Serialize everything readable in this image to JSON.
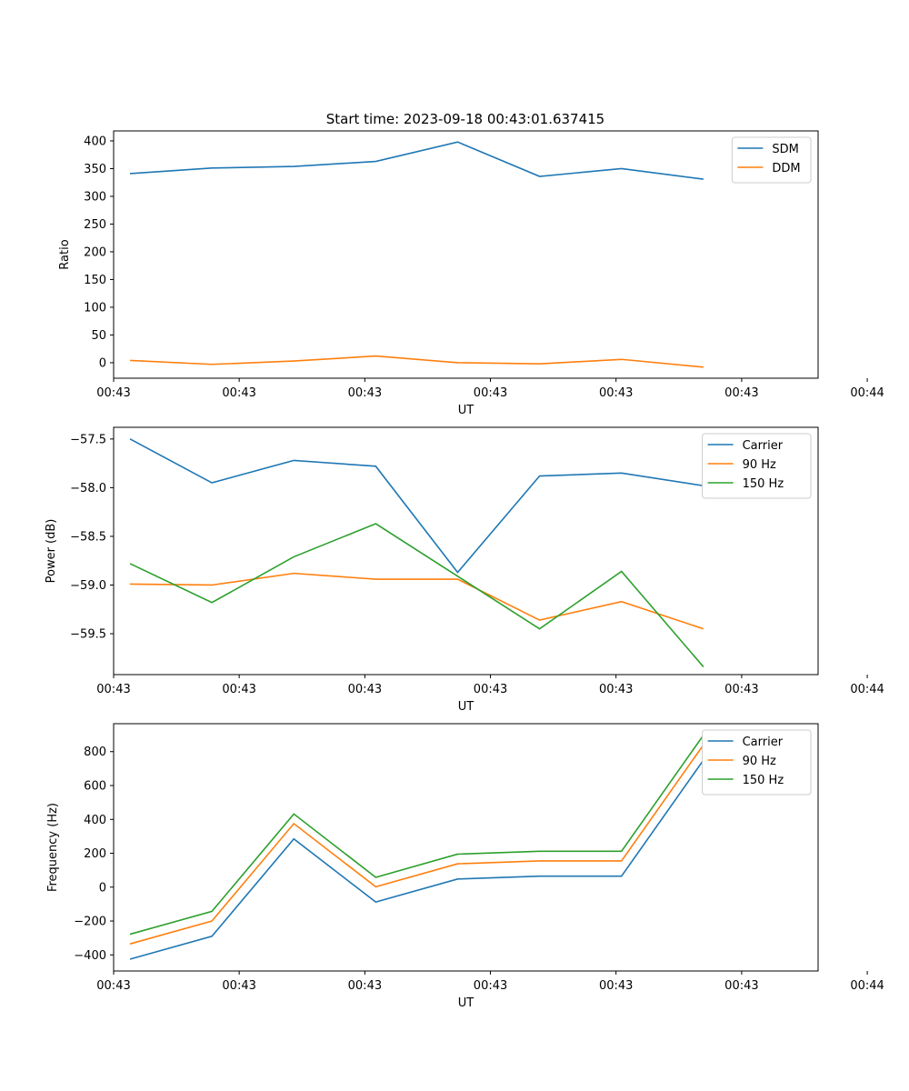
{
  "figure_title": "Start time: 2023-09-18 00:43:01.637415",
  "colors": {
    "blue": "#1f77b4",
    "orange": "#ff7f0e",
    "green": "#2ca02c"
  },
  "chart_data": [
    {
      "type": "line",
      "title": "Start time: 2023-09-18 00:43:01.637415",
      "xlabel": "UT",
      "ylabel": "Ratio",
      "x": [
        1,
        2,
        3,
        4,
        5,
        6,
        7,
        8
      ],
      "xlim": [
        0.8,
        9.4
      ],
      "x_ticks": [
        0.8,
        2.33,
        3.86,
        5.39,
        6.92,
        8.45,
        9.98,
        11.51,
        13.04,
        14.57,
        16.1,
        17.63,
        19.16,
        20.69,
        22.22,
        23.75,
        25.28,
        26.81,
        28.34,
        29.87,
        31.4,
        32.93,
        34.46,
        35.99,
        37.52,
        39.05,
        40.58,
        42.11,
        43.64,
        45.17,
        46.7,
        48.23,
        49.76
      ],
      "x_tick_values": [
        0.8,
        2.333,
        3.867,
        5.4,
        6.933,
        8.467,
        10.0
      ],
      "x_tick_labels": [
        "00:43",
        "00:43",
        "00:43",
        "00:43",
        "00:43",
        "00:43",
        "00:44"
      ],
      "ylim": [
        -28,
        418
      ],
      "y_ticks": [
        0,
        50,
        100,
        150,
        200,
        250,
        300,
        350,
        400
      ],
      "y_tick_labels": [
        "0",
        "50",
        "100",
        "150",
        "200",
        "250",
        "300",
        "350",
        "400"
      ],
      "legend_position": "top-right",
      "series": [
        {
          "name": "SDM",
          "color": "#1f77b4",
          "values": [
            341,
            351,
            354,
            363,
            398,
            336,
            350,
            331
          ]
        },
        {
          "name": "DDM",
          "color": "#ff7f0e",
          "values": [
            4,
            -3,
            3,
            12,
            0,
            -2,
            6,
            -8
          ]
        }
      ]
    },
    {
      "type": "line",
      "title": "",
      "xlabel": "UT",
      "ylabel": "Power (dB)",
      "x": [
        1,
        2,
        3,
        4,
        5,
        6,
        7,
        8
      ],
      "xlim": [
        0.8,
        9.4
      ],
      "x_tick_values": [
        0.8,
        2.333,
        3.867,
        5.4,
        6.933,
        8.467,
        10.0
      ],
      "x_tick_labels": [
        "00:43",
        "00:43",
        "00:43",
        "00:43",
        "00:43",
        "00:43",
        "00:44"
      ],
      "ylim": [
        -59.92,
        -57.38
      ],
      "y_ticks": [
        -59.5,
        -59.0,
        -58.5,
        -58.0,
        -57.5
      ],
      "y_tick_labels": [
        "−59.5",
        "−59.0",
        "−58.5",
        "−58.0",
        "−57.5"
      ],
      "legend_position": "top-right",
      "series": [
        {
          "name": "Carrier",
          "color": "#1f77b4",
          "values": [
            -57.5,
            -57.95,
            -57.72,
            -57.78,
            -58.87,
            -57.88,
            -57.85,
            -57.98
          ]
        },
        {
          "name": "90 Hz",
          "color": "#ff7f0e",
          "values": [
            -58.99,
            -59.0,
            -58.88,
            -58.94,
            -58.94,
            -59.36,
            -59.17,
            -59.45
          ]
        },
        {
          "name": "150 Hz",
          "color": "#2ca02c",
          "values": [
            -58.78,
            -59.18,
            -58.71,
            -58.37,
            -58.91,
            -59.45,
            -58.86,
            -59.84
          ]
        }
      ]
    },
    {
      "type": "line",
      "title": "",
      "xlabel": "UT",
      "ylabel": "Frequency (Hz)",
      "x": [
        1,
        2,
        3,
        4,
        5,
        6,
        7,
        8
      ],
      "xlim": [
        0.8,
        9.4
      ],
      "x_tick_values": [
        0.8,
        2.333,
        3.867,
        5.4,
        6.933,
        8.467,
        10.0
      ],
      "x_tick_labels": [
        "00:43",
        "00:43",
        "00:43",
        "00:43",
        "00:43",
        "00:43",
        "00:44"
      ],
      "ylim": [
        -495,
        965
      ],
      "y_ticks": [
        -400,
        -200,
        0,
        200,
        400,
        600,
        800
      ],
      "y_tick_labels": [
        "−400",
        "−200",
        "0",
        "200",
        "400",
        "600",
        "800"
      ],
      "legend_position": "top-right",
      "series": [
        {
          "name": "Carrier",
          "color": "#1f77b4",
          "values": [
            -425,
            -290,
            285,
            -88,
            48,
            65,
            65,
            750
          ]
        },
        {
          "name": "90 Hz",
          "color": "#ff7f0e",
          "values": [
            -335,
            -200,
            375,
            2,
            138,
            155,
            155,
            840
          ]
        },
        {
          "name": "150 Hz",
          "color": "#2ca02c",
          "values": [
            -278,
            -143,
            432,
            58,
            195,
            212,
            212,
            897
          ]
        }
      ]
    }
  ]
}
